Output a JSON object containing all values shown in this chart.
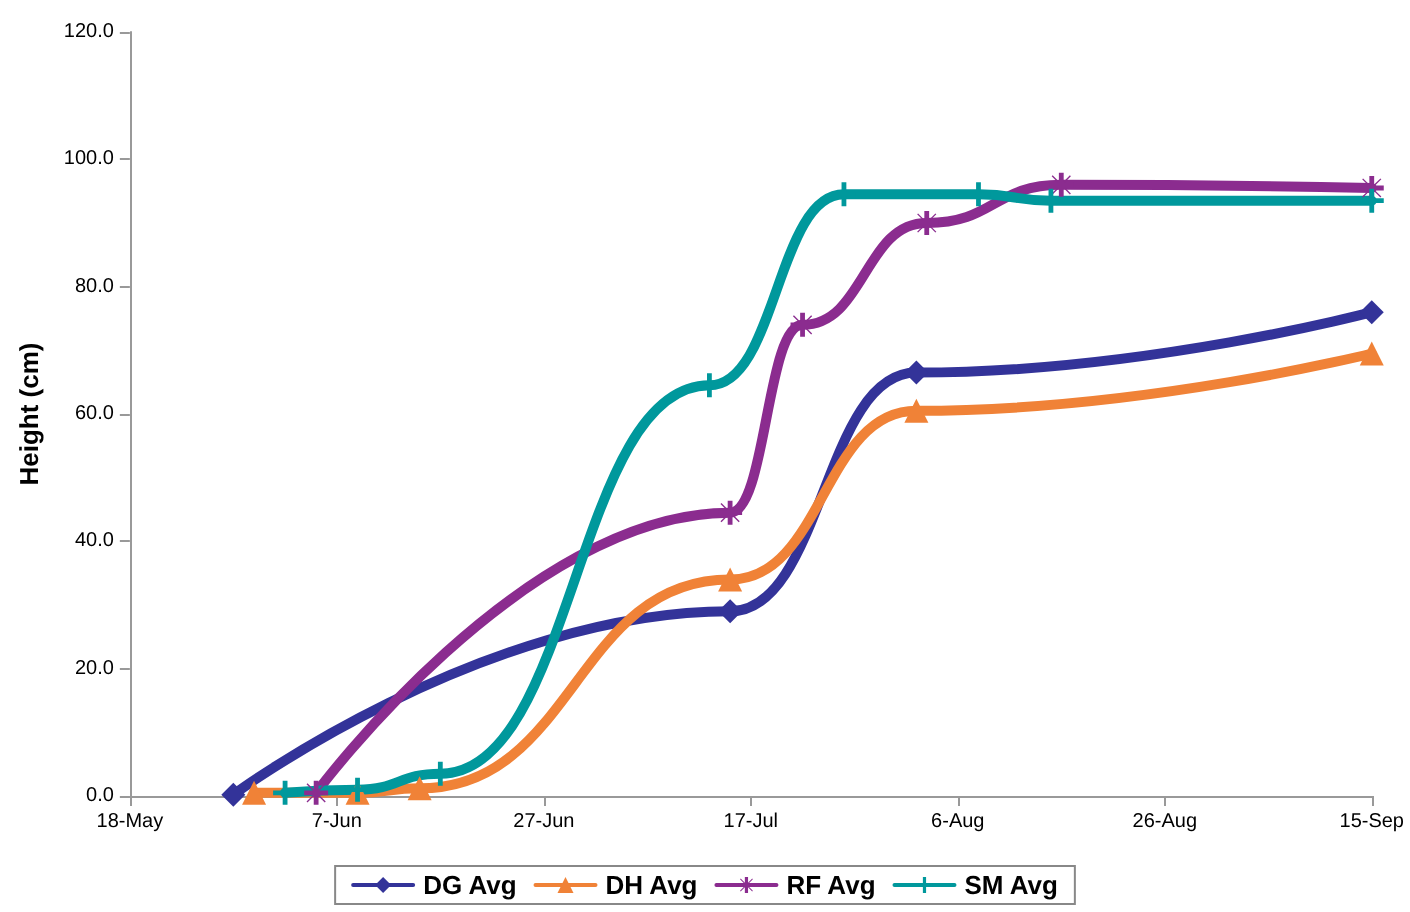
{
  "chart_data": {
    "type": "line",
    "ylabel": "Height (cm)",
    "xlim": [
      "--05-18",
      "--09-15"
    ],
    "xticks": [
      {
        "value": "--05-18",
        "label": "18-May"
      },
      {
        "value": "--06-07",
        "label": "7-Jun"
      },
      {
        "value": "--06-27",
        "label": "27-Jun"
      },
      {
        "value": "--07-17",
        "label": "17-Jul"
      },
      {
        "value": "--08-06",
        "label": "6-Aug"
      },
      {
        "value": "--08-26",
        "label": "26-Aug"
      },
      {
        "value": "--09-15",
        "label": "15-Sep"
      }
    ],
    "ylim": [
      0,
      120
    ],
    "yticks": [
      {
        "value": 0,
        "label": "0.0"
      },
      {
        "value": 20,
        "label": "20.0"
      },
      {
        "value": 40,
        "label": "40.0"
      },
      {
        "value": 60,
        "label": "60.0"
      },
      {
        "value": 80,
        "label": "80.0"
      },
      {
        "value": 100,
        "label": "100.0"
      },
      {
        "value": 120,
        "label": "120.0"
      }
    ],
    "legend": "bottom",
    "line_style": "solid",
    "series": [
      {
        "name": "DG Avg",
        "color": "#333399",
        "marker": "diamond",
        "x": [
          "--05-28",
          "--07-15",
          "--08-02",
          "--09-15"
        ],
        "values": [
          0.2,
          29,
          66.5,
          76
        ]
      },
      {
        "name": "DH Avg",
        "color": "#f08237",
        "marker": "triangle",
        "x": [
          "--05-30",
          "--06-09",
          "--06-15",
          "--07-15",
          "--08-02",
          "--09-15"
        ],
        "values": [
          0.5,
          0.5,
          1.2,
          34,
          60.5,
          69.5
        ]
      },
      {
        "name": "RF Avg",
        "color": "#8b2c8f",
        "marker": "star",
        "x": [
          "--06-05",
          "--07-15",
          "--07-22",
          "--08-03",
          "--08-16",
          "--09-15"
        ],
        "values": [
          0.5,
          44.5,
          74,
          90,
          96,
          95.5
        ]
      },
      {
        "name": "SM Avg",
        "color": "#00989c",
        "marker": "cross",
        "x": [
          "--06-02",
          "--06-09",
          "--06-17",
          "--07-13",
          "--07-26",
          "--08-08",
          "--08-15",
          "--09-15"
        ],
        "values": [
          0.5,
          1,
          3.5,
          64.5,
          94.5,
          94.5,
          93.5,
          93.5
        ]
      }
    ]
  }
}
